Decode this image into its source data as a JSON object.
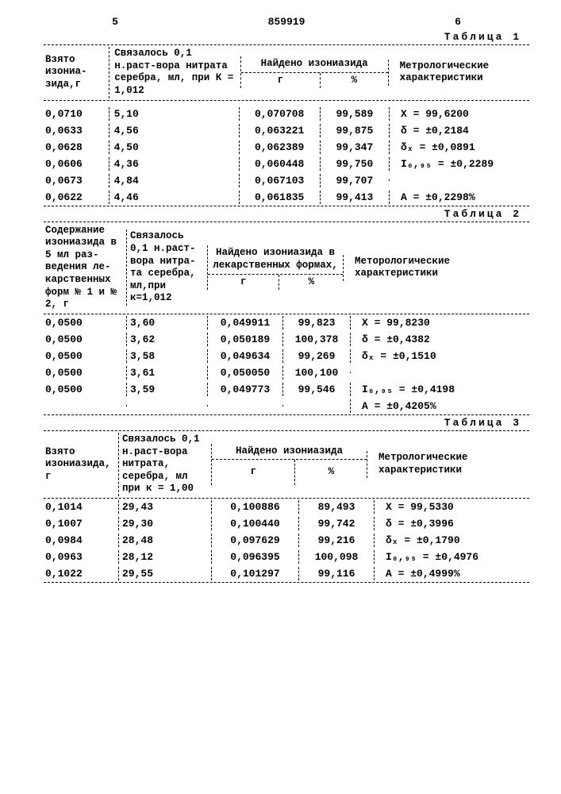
{
  "page_left_num": "5",
  "doc_num": "859919",
  "page_right_num": "6",
  "table1": {
    "label": "Таблица 1",
    "headers": {
      "c1": "Взято изониа-зида,г",
      "c2": "Связалось 0,1 н.раст-вора нитрата серебра, мл, при К = 1,012",
      "found": "Найдено изониазида",
      "c3": "г",
      "c4": "%",
      "c5": "Метрологические характеристики"
    },
    "rows": [
      {
        "c1": "0,0710",
        "c2": "5,10",
        "c3": "0,070708",
        "c4": "99,589",
        "c5": "X = 99,6200"
      },
      {
        "c1": "0,0633",
        "c2": "4,56",
        "c3": "0,063221",
        "c4": "99,875",
        "c5": "δ = ±0,2184"
      },
      {
        "c1": "0,0628",
        "c2": "4,50",
        "c3": "0,062389",
        "c4": "99,347",
        "c5": "δₓ = ±0,0891"
      },
      {
        "c1": "0,0606",
        "c2": "4,36",
        "c3": "0,060448",
        "c4": "99,750",
        "c5": "I₀,₉₅ = ±0,2289"
      },
      {
        "c1": "0,0673",
        "c2": "4,84",
        "c3": "0,067103",
        "c4": "99,707",
        "c5": ""
      },
      {
        "c1": "0,0622",
        "c2": "4,46",
        "c3": "0,061835",
        "c4": "99,413",
        "c5": "A = ±0,2298%"
      }
    ]
  },
  "table2": {
    "label": "Таблица 2",
    "headers": {
      "c1": "Содержание изониазида в 5 мл раз-ведения ле-карственных форм № 1 и № 2, г",
      "c2": "Связалось 0,1 н.раст-вора нитра-та серебра, мл,при к=1,012",
      "found": "Найдено изониазида в лекарственных формах,",
      "c3": "г",
      "c4": "%",
      "c5": "Меторологические характеристики"
    },
    "rows": [
      {
        "c1": "0,0500",
        "c2": "3,60",
        "c3": "0,049911",
        "c4": "99,823",
        "c5": "X = 99,8230"
      },
      {
        "c1": "0,0500",
        "c2": "3,62",
        "c3": "0,050189",
        "c4": "100,378",
        "c5": "δ = ±0,4382"
      },
      {
        "c1": "0,0500",
        "c2": "3,58",
        "c3": "0,049634",
        "c4": "99,269",
        "c5": "δₓ = ±0,1510"
      },
      {
        "c1": "0,0500",
        "c2": "3,61",
        "c3": "0,050050",
        "c4": "100,100",
        "c5": ""
      },
      {
        "c1": "0,0500",
        "c2": "3,59",
        "c3": "0,049773",
        "c4": "99,546",
        "c5": "I₀,₉₅ = ±0,4198"
      },
      {
        "c1": "",
        "c2": "",
        "c3": "",
        "c4": "",
        "c5": "A = ±0,4205%"
      }
    ]
  },
  "table3": {
    "label": "Таблица 3",
    "headers": {
      "c1": "Взято изониазида, г",
      "c2": "Связалось 0,1 н.раст-вора нитрата, серебра, мл при к = 1,00",
      "found": "Найдено изониазида",
      "c3": "г",
      "c4": "%",
      "c5": "Метрологические характеристики"
    },
    "rows": [
      {
        "c1": "0,1014",
        "c2": "29,43",
        "c3": "0,100886",
        "c4": "89,493",
        "c5": "X = 99,5330"
      },
      {
        "c1": "0,1007",
        "c2": "29,30",
        "c3": "0,100440",
        "c4": "99,742",
        "c5": "δ = ±0,3996"
      },
      {
        "c1": "0,0984",
        "c2": "28,48",
        "c3": "0,097629",
        "c4": "99,216",
        "c5": "δₓ = ±0,1790"
      },
      {
        "c1": "0,0963",
        "c2": "28,12",
        "c3": "0,096395",
        "c4": "100,098",
        "c5": "I₀,₉₅ = ±0,4976"
      },
      {
        "c1": "0,1022",
        "c2": "29,55",
        "c3": "0,101297",
        "c4": "99,116",
        "c5": "A = ±0,4999%"
      }
    ]
  }
}
